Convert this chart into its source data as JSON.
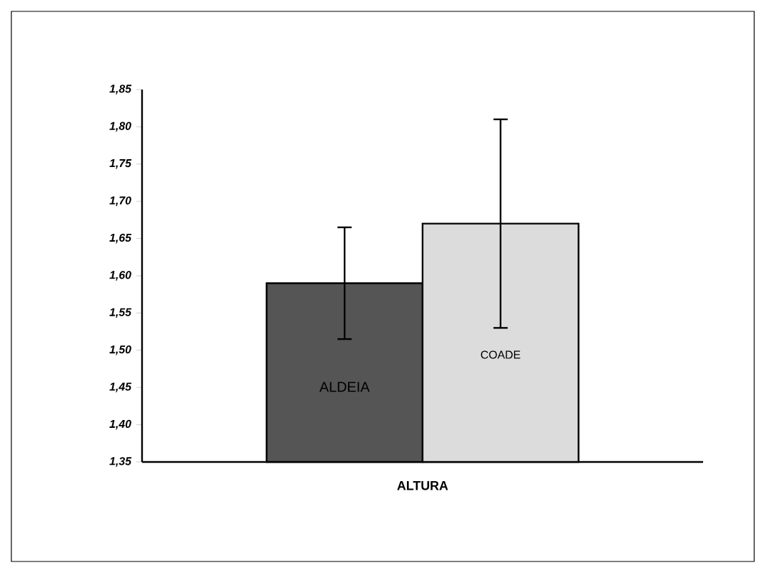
{
  "chart_data": {
    "type": "bar",
    "categories": [
      "ALTURA"
    ],
    "series": [
      {
        "name": "ALDEIA",
        "color": "#555555",
        "values": [
          1.59
        ],
        "errors": [
          0.075
        ]
      },
      {
        "name": "COADE",
        "color": "#dcdcdc",
        "values": [
          1.67
        ],
        "errors": [
          0.14
        ]
      }
    ],
    "ylim": [
      1.35,
      1.85
    ],
    "yticks": [
      {
        "value": 1.35,
        "label": "1,35"
      },
      {
        "value": 1.4,
        "label": "1,40"
      },
      {
        "value": 1.45,
        "label": "1,45"
      },
      {
        "value": 1.5,
        "label": "1,50"
      },
      {
        "value": 1.55,
        "label": "1,55"
      },
      {
        "value": 1.6,
        "label": "1,60"
      },
      {
        "value": 1.65,
        "label": "1,65"
      },
      {
        "value": 1.7,
        "label": "1,70"
      },
      {
        "value": 1.75,
        "label": "1,75"
      },
      {
        "value": 1.8,
        "label": "1,80"
      },
      {
        "value": 1.85,
        "label": "1,85"
      }
    ]
  }
}
